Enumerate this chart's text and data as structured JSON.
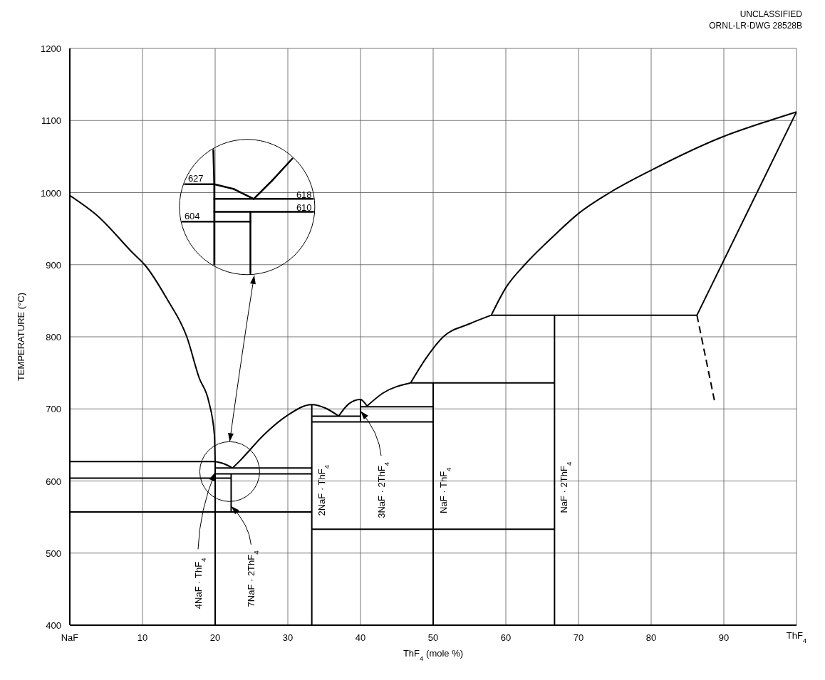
{
  "chart_data": [
    {
      "type": "line",
      "xlabel": "ThF$_{4}$ (mole %)",
      "ylabel": "TEMPERATURE (°C)",
      "xlim": [
        0,
        100
      ],
      "ylim": [
        400,
        1200
      ],
      "xticks": [
        {
          "value": 0,
          "label": "NaF"
        },
        10,
        20,
        30,
        40,
        50,
        60,
        70,
        80,
        90,
        {
          "value": 100,
          "label": null
        }
      ],
      "yticks": [
        400,
        500,
        600,
        700,
        800,
        900,
        1000,
        1100,
        1200
      ],
      "grid": true,
      "series": [
        {
          "color": "#000000",
          "x": [
            0,
            3.9,
            8.7,
            10.3,
            13.4,
            16.1,
            17.8,
            19.1,
            19.9,
            20
          ],
          "values": [
            996,
            967,
            916,
            900,
            852,
            800,
            743,
            711,
            664,
            627
          ]
        },
        {
          "color": "#000000",
          "x": [
            20,
            21.2,
            22.4
          ],
          "values": [
            627,
            624,
            618
          ]
        },
        {
          "color": "#000000",
          "x": [
            22.4,
            23.5,
            26.7,
            29.8,
            33.3,
            35.2,
            37
          ],
          "values": [
            618,
            629,
            664,
            690,
            706,
            701,
            690
          ]
        },
        {
          "color": "#000000",
          "x": [
            37,
            38.4,
            40,
            40.9
          ],
          "values": [
            690,
            707,
            713,
            704
          ]
        },
        {
          "color": "#000000",
          "x": [
            40.9,
            43.1,
            46.9
          ],
          "values": [
            704,
            722,
            736
          ]
        },
        {
          "color": "#000000",
          "x": [
            46.9,
            48.8,
            51.4,
            55,
            58
          ],
          "values": [
            736,
            767,
            800,
            818,
            830
          ]
        },
        {
          "color": "#000000",
          "x": [
            58,
            60,
            62.6,
            66.6,
            70,
            74.3,
            80,
            90,
            96.6,
            100
          ],
          "values": [
            830,
            868,
            900,
            940,
            971,
            1000,
            1031,
            1078,
            1101,
            1112
          ]
        },
        {
          "color": "#000000",
          "x": [
            86.3,
            100
          ],
          "values": [
            830,
            1112
          ]
        },
        {
          "color": "#000000",
          "x": [
            86.3,
            88.7
          ],
          "values": [
            830,
            712
          ],
          "line_style": "dashed"
        },
        {
          "color": "#000000",
          "x": [
            0,
            20
          ],
          "values": [
            627,
            627
          ]
        },
        {
          "color": "#000000",
          "x": [
            0,
            22.2
          ],
          "values": [
            604,
            604
          ]
        },
        {
          "color": "#000000",
          "x": [
            20,
            33.3
          ],
          "values": [
            618,
            618
          ]
        },
        {
          "color": "#000000",
          "x": [
            20,
            33.3
          ],
          "values": [
            610,
            610
          ]
        },
        {
          "color": "#000000",
          "x": [
            0,
            33.3
          ],
          "values": [
            557,
            557
          ]
        },
        {
          "color": "#000000",
          "x": [
            20,
            20
          ],
          "values": [
            400,
            627
          ]
        },
        {
          "color": "#000000",
          "x": [
            22.2,
            22.2
          ],
          "values": [
            557,
            610
          ]
        },
        {
          "color": "#000000",
          "x": [
            33.3,
            33.3
          ],
          "values": [
            400,
            706
          ]
        },
        {
          "color": "#000000",
          "x": [
            33.3,
            66.7
          ],
          "values": [
            533,
            533
          ]
        },
        {
          "color": "#000000",
          "x": [
            33.3,
            40
          ],
          "values": [
            690,
            690
          ]
        },
        {
          "color": "#000000",
          "x": [
            33.3,
            50
          ],
          "values": [
            682,
            682
          ]
        },
        {
          "color": "#000000",
          "x": [
            40,
            40
          ],
          "values": [
            682,
            713
          ]
        },
        {
          "color": "#000000",
          "x": [
            40,
            50
          ],
          "values": [
            703,
            703
          ]
        },
        {
          "color": "#000000",
          "x": [
            50,
            50
          ],
          "values": [
            400,
            736
          ]
        },
        {
          "color": "#000000",
          "x": [
            46.9,
            66.7
          ],
          "values": [
            736,
            736
          ]
        },
        {
          "color": "#000000",
          "x": [
            66.7,
            66.7
          ],
          "values": [
            400,
            830
          ]
        },
        {
          "color": "#000000",
          "x": [
            58,
            86.3
          ],
          "values": [
            830,
            830
          ]
        }
      ],
      "annotations": [
        "UNCLASSIFIED",
        "ORNL-LR-DWG 28528B",
        {
          "text": "4NaF · ThF$_{4}$",
          "x": 20,
          "y": 615
        },
        {
          "text": "7NaF · 2ThF$_{4}$",
          "x": 22.2,
          "y": 568
        },
        {
          "text": "2NaF · ThF$_{4}$",
          "x": 33.3,
          "y": 587
        },
        {
          "text": "3NaF · 2ThF$_{4}$",
          "x": 40,
          "y": 700
        },
        {
          "text": "NaF · ThF$_{4}$",
          "x": 50,
          "y": 587
        },
        {
          "text": "NaF · 2ThF$_{4}$",
          "x": 66.7,
          "y": 591
        },
        "627",
        "618",
        "610",
        "604",
        "ThF$_{4}$"
      ]
    }
  ]
}
